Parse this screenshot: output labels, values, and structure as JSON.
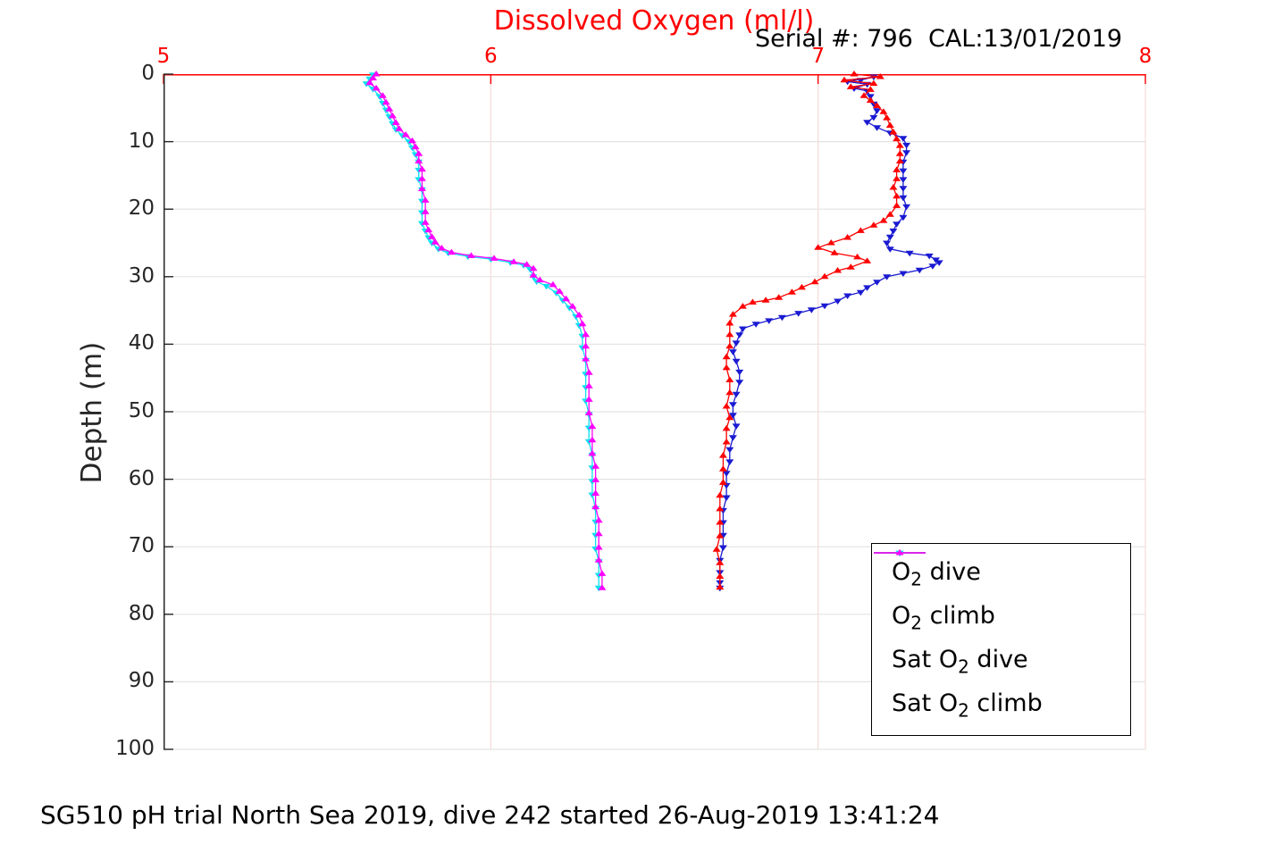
{
  "header": {
    "title": "Dissolved Oxygen (ml/l)",
    "serial_text": "Serial #: 796  CAL:13/01/2019"
  },
  "footer": {
    "caption": "SG510 pH trial North Sea 2019, dive 242 started 26-Aug-2019 13:41:24"
  },
  "legend": {
    "items": [
      {
        "id": "o2-dive",
        "label_pre": "O",
        "label_sub": "2",
        "label_post": " dive",
        "color": "#1a1ad2",
        "marker": "down"
      },
      {
        "id": "o2-climb",
        "label_pre": "O",
        "label_sub": "2",
        "label_post": " climb",
        "color": "#ff0000",
        "marker": "up"
      },
      {
        "id": "sat-o2-dive",
        "label_pre": "Sat O",
        "label_sub": "2",
        "label_post": " dive",
        "color": "#0fe0f0",
        "marker": "down"
      },
      {
        "id": "sat-o2-climb",
        "label_pre": "Sat O",
        "label_sub": "2",
        "label_post": " climb",
        "color": "#ff00ff",
        "marker": "up"
      }
    ]
  },
  "chart_data": {
    "type": "line",
    "title": "Dissolved Oxygen (ml/l)",
    "x_axis_position": "top",
    "xlabel": "Dissolved Oxygen (ml/l)",
    "ylabel": "Depth (m)",
    "xlim": [
      5,
      8
    ],
    "ylim": [
      0,
      100
    ],
    "y_direction": "reverse (depth increases downward)",
    "x_ticks": [
      5,
      6,
      7,
      8
    ],
    "y_ticks": [
      0,
      10,
      20,
      30,
      40,
      50,
      60,
      70,
      80,
      90,
      100
    ],
    "grid": true,
    "legend_position": "inside lower right",
    "colors": {
      "x_axis": "#ff0000",
      "y_axis": "#262626",
      "x_grid": "#f8dada",
      "y_grid": "#e3e3e3",
      "title": "#ff0000"
    },
    "series": [
      {
        "id": "o2-dive",
        "name": "O2 dive",
        "color": "#1a1ad2",
        "marker": "triangle-down",
        "points": [
          [
            7.13,
            0.9
          ],
          [
            7.17,
            0.4
          ],
          [
            7.09,
            1.1
          ],
          [
            7.15,
            1.5
          ],
          [
            7.11,
            2.1
          ],
          [
            7.15,
            2.5
          ],
          [
            7.16,
            3.3
          ],
          [
            7.17,
            4.4
          ],
          [
            7.18,
            5.4
          ],
          [
            7.17,
            6.4
          ],
          [
            7.15,
            7.1
          ],
          [
            7.18,
            7.9
          ],
          [
            7.22,
            8.7
          ],
          [
            7.26,
            9.5
          ],
          [
            7.27,
            10.5
          ],
          [
            7.27,
            11.6
          ],
          [
            7.26,
            13.0
          ],
          [
            7.26,
            14.3
          ],
          [
            7.26,
            15.6
          ],
          [
            7.26,
            16.9
          ],
          [
            7.26,
            18.3
          ],
          [
            7.27,
            19.6
          ],
          [
            7.26,
            21.2
          ],
          [
            7.24,
            22.2
          ],
          [
            7.23,
            23.2
          ],
          [
            7.22,
            24.1
          ],
          [
            7.21,
            25.0
          ],
          [
            7.22,
            25.9
          ],
          [
            7.28,
            26.5
          ],
          [
            7.34,
            26.9
          ],
          [
            7.36,
            27.5
          ],
          [
            7.37,
            27.9
          ],
          [
            7.35,
            28.4
          ],
          [
            7.31,
            29.0
          ],
          [
            7.26,
            29.5
          ],
          [
            7.21,
            30.0
          ],
          [
            7.18,
            30.8
          ],
          [
            7.15,
            31.6
          ],
          [
            7.13,
            32.3
          ],
          [
            7.09,
            32.8
          ],
          [
            7.06,
            33.6
          ],
          [
            7.02,
            34.3
          ],
          [
            6.98,
            34.9
          ],
          [
            6.94,
            35.4
          ],
          [
            6.89,
            36.0
          ],
          [
            6.85,
            36.5
          ],
          [
            6.81,
            37.0
          ],
          [
            6.77,
            37.7
          ],
          [
            6.76,
            38.6
          ],
          [
            6.75,
            39.8
          ],
          [
            6.74,
            41.1
          ],
          [
            6.75,
            42.5
          ],
          [
            6.76,
            44.1
          ],
          [
            6.76,
            45.6
          ],
          [
            6.75,
            47.4
          ],
          [
            6.74,
            48.9
          ],
          [
            6.74,
            50.5
          ],
          [
            6.75,
            52.1
          ],
          [
            6.74,
            53.8
          ],
          [
            6.73,
            55.6
          ],
          [
            6.73,
            57.4
          ],
          [
            6.72,
            59.1
          ],
          [
            6.72,
            60.9
          ],
          [
            6.72,
            62.7
          ],
          [
            6.71,
            64.6
          ],
          [
            6.71,
            66.4
          ],
          [
            6.71,
            68.3
          ],
          [
            6.71,
            70.1
          ],
          [
            6.7,
            72.0
          ],
          [
            6.7,
            73.8
          ],
          [
            6.7,
            75.3
          ],
          [
            6.7,
            76.1
          ]
        ]
      },
      {
        "id": "o2-climb",
        "name": "O2 climb",
        "color": "#ff0000",
        "marker": "triangle-up",
        "points": [
          [
            7.11,
            0.0
          ],
          [
            7.19,
            0.4
          ],
          [
            7.08,
            0.9
          ],
          [
            7.17,
            1.4
          ],
          [
            7.1,
            1.9
          ],
          [
            7.16,
            2.3
          ],
          [
            7.14,
            3.2
          ],
          [
            7.16,
            3.9
          ],
          [
            7.18,
            4.7
          ],
          [
            7.2,
            5.6
          ],
          [
            7.21,
            6.5
          ],
          [
            7.22,
            7.6
          ],
          [
            7.23,
            8.6
          ],
          [
            7.24,
            9.6
          ],
          [
            7.25,
            10.6
          ],
          [
            7.25,
            11.8
          ],
          [
            7.25,
            12.9
          ],
          [
            7.24,
            14.2
          ],
          [
            7.24,
            15.5
          ],
          [
            7.23,
            16.8
          ],
          [
            7.24,
            18.1
          ],
          [
            7.24,
            19.5
          ],
          [
            7.22,
            20.8
          ],
          [
            7.2,
            21.7
          ],
          [
            7.17,
            22.4
          ],
          [
            7.13,
            23.2
          ],
          [
            7.09,
            24.2
          ],
          [
            7.04,
            25.0
          ],
          [
            7.0,
            25.7
          ],
          [
            7.05,
            26.5
          ],
          [
            7.12,
            27.1
          ],
          [
            7.15,
            27.7
          ],
          [
            7.1,
            28.6
          ],
          [
            7.06,
            29.1
          ],
          [
            7.02,
            30.0
          ],
          [
            6.99,
            30.8
          ],
          [
            6.95,
            31.6
          ],
          [
            6.92,
            32.3
          ],
          [
            6.88,
            33.1
          ],
          [
            6.84,
            33.5
          ],
          [
            6.8,
            33.8
          ],
          [
            6.77,
            34.4
          ],
          [
            6.74,
            35.6
          ],
          [
            6.73,
            36.9
          ],
          [
            6.73,
            38.6
          ],
          [
            6.73,
            40.3
          ],
          [
            6.72,
            41.9
          ],
          [
            6.72,
            43.5
          ],
          [
            6.73,
            45.3
          ],
          [
            6.73,
            47.2
          ],
          [
            6.72,
            49.2
          ],
          [
            6.73,
            50.9
          ],
          [
            6.72,
            52.5
          ],
          [
            6.72,
            54.5
          ],
          [
            6.71,
            56.5
          ],
          [
            6.71,
            58.5
          ],
          [
            6.71,
            60.5
          ],
          [
            6.7,
            62.4
          ],
          [
            6.7,
            64.4
          ],
          [
            6.7,
            66.4
          ],
          [
            6.7,
            68.4
          ],
          [
            6.69,
            70.4
          ],
          [
            6.7,
            72.4
          ],
          [
            6.7,
            74.4
          ],
          [
            6.7,
            76.0
          ]
        ]
      },
      {
        "id": "sat-o2-dive",
        "name": "Sat O2 dive",
        "color": "#0fe0f0",
        "marker": "triangle-down",
        "points": [
          [
            5.64,
            0.1
          ],
          [
            5.63,
            0.7
          ],
          [
            5.62,
            1.4
          ],
          [
            5.64,
            2.2
          ],
          [
            5.66,
            3.3
          ],
          [
            5.67,
            4.3
          ],
          [
            5.68,
            5.3
          ],
          [
            5.69,
            6.3
          ],
          [
            5.7,
            7.3
          ],
          [
            5.71,
            8.2
          ],
          [
            5.73,
            9.1
          ],
          [
            5.75,
            10.0
          ],
          [
            5.76,
            10.9
          ],
          [
            5.77,
            11.9
          ],
          [
            5.78,
            13.0
          ],
          [
            5.78,
            14.2
          ],
          [
            5.78,
            15.6
          ],
          [
            5.79,
            17.1
          ],
          [
            5.79,
            18.8
          ],
          [
            5.79,
            20.5
          ],
          [
            5.79,
            22.1
          ],
          [
            5.8,
            23.2
          ],
          [
            5.81,
            24.2
          ],
          [
            5.82,
            25.0
          ],
          [
            5.84,
            25.9
          ],
          [
            5.87,
            26.5
          ],
          [
            5.93,
            27.0
          ],
          [
            6.0,
            27.4
          ],
          [
            6.06,
            27.9
          ],
          [
            6.1,
            28.3
          ],
          [
            6.12,
            28.9
          ],
          [
            6.13,
            30.0
          ],
          [
            6.14,
            30.7
          ],
          [
            6.17,
            31.4
          ],
          [
            6.2,
            32.4
          ],
          [
            6.22,
            33.5
          ],
          [
            6.24,
            34.6
          ],
          [
            6.26,
            35.9
          ],
          [
            6.27,
            37.2
          ],
          [
            6.28,
            38.8
          ],
          [
            6.28,
            40.5
          ],
          [
            6.29,
            42.4
          ],
          [
            6.29,
            44.4
          ],
          [
            6.29,
            46.4
          ],
          [
            6.29,
            48.4
          ],
          [
            6.3,
            50.4
          ],
          [
            6.3,
            52.4
          ],
          [
            6.3,
            54.4
          ],
          [
            6.31,
            56.4
          ],
          [
            6.31,
            58.3
          ],
          [
            6.31,
            60.3
          ],
          [
            6.31,
            62.3
          ],
          [
            6.32,
            64.3
          ],
          [
            6.32,
            66.3
          ],
          [
            6.32,
            68.3
          ],
          [
            6.32,
            70.3
          ],
          [
            6.33,
            72.2
          ],
          [
            6.33,
            74.2
          ],
          [
            6.33,
            76.1
          ]
        ]
      },
      {
        "id": "sat-o2-climb",
        "name": "Sat O2 climb",
        "color": "#ff00ff",
        "marker": "triangle-up",
        "points": [
          [
            5.65,
            0.0
          ],
          [
            5.64,
            0.6
          ],
          [
            5.63,
            1.3
          ],
          [
            5.65,
            2.1
          ],
          [
            5.67,
            3.2
          ],
          [
            5.68,
            4.2
          ],
          [
            5.69,
            5.2
          ],
          [
            5.7,
            6.2
          ],
          [
            5.71,
            7.2
          ],
          [
            5.72,
            8.1
          ],
          [
            5.74,
            9.0
          ],
          [
            5.76,
            9.9
          ],
          [
            5.77,
            10.8
          ],
          [
            5.78,
            11.8
          ],
          [
            5.78,
            12.9
          ],
          [
            5.79,
            14.1
          ],
          [
            5.79,
            15.5
          ],
          [
            5.79,
            17.0
          ],
          [
            5.8,
            18.7
          ],
          [
            5.8,
            20.4
          ],
          [
            5.8,
            22.0
          ],
          [
            5.81,
            23.1
          ],
          [
            5.82,
            24.1
          ],
          [
            5.83,
            24.9
          ],
          [
            5.85,
            25.8
          ],
          [
            5.88,
            26.4
          ],
          [
            5.94,
            26.9
          ],
          [
            6.01,
            27.3
          ],
          [
            6.07,
            27.8
          ],
          [
            6.11,
            28.2
          ],
          [
            6.13,
            28.8
          ],
          [
            6.13,
            29.8
          ],
          [
            6.15,
            30.5
          ],
          [
            6.19,
            31.2
          ],
          [
            6.21,
            32.2
          ],
          [
            6.23,
            33.3
          ],
          [
            6.25,
            34.4
          ],
          [
            6.27,
            35.7
          ],
          [
            6.28,
            37.0
          ],
          [
            6.29,
            38.6
          ],
          [
            6.29,
            40.3
          ],
          [
            6.29,
            42.2
          ],
          [
            6.3,
            44.2
          ],
          [
            6.3,
            46.2
          ],
          [
            6.3,
            48.2
          ],
          [
            6.3,
            50.2
          ],
          [
            6.31,
            52.2
          ],
          [
            6.31,
            54.2
          ],
          [
            6.31,
            56.2
          ],
          [
            6.32,
            58.1
          ],
          [
            6.32,
            60.1
          ],
          [
            6.32,
            62.1
          ],
          [
            6.32,
            64.1
          ],
          [
            6.33,
            66.1
          ],
          [
            6.33,
            68.1
          ],
          [
            6.33,
            70.1
          ],
          [
            6.33,
            72.0
          ],
          [
            6.34,
            74.0
          ],
          [
            6.34,
            76.1
          ]
        ]
      }
    ]
  }
}
